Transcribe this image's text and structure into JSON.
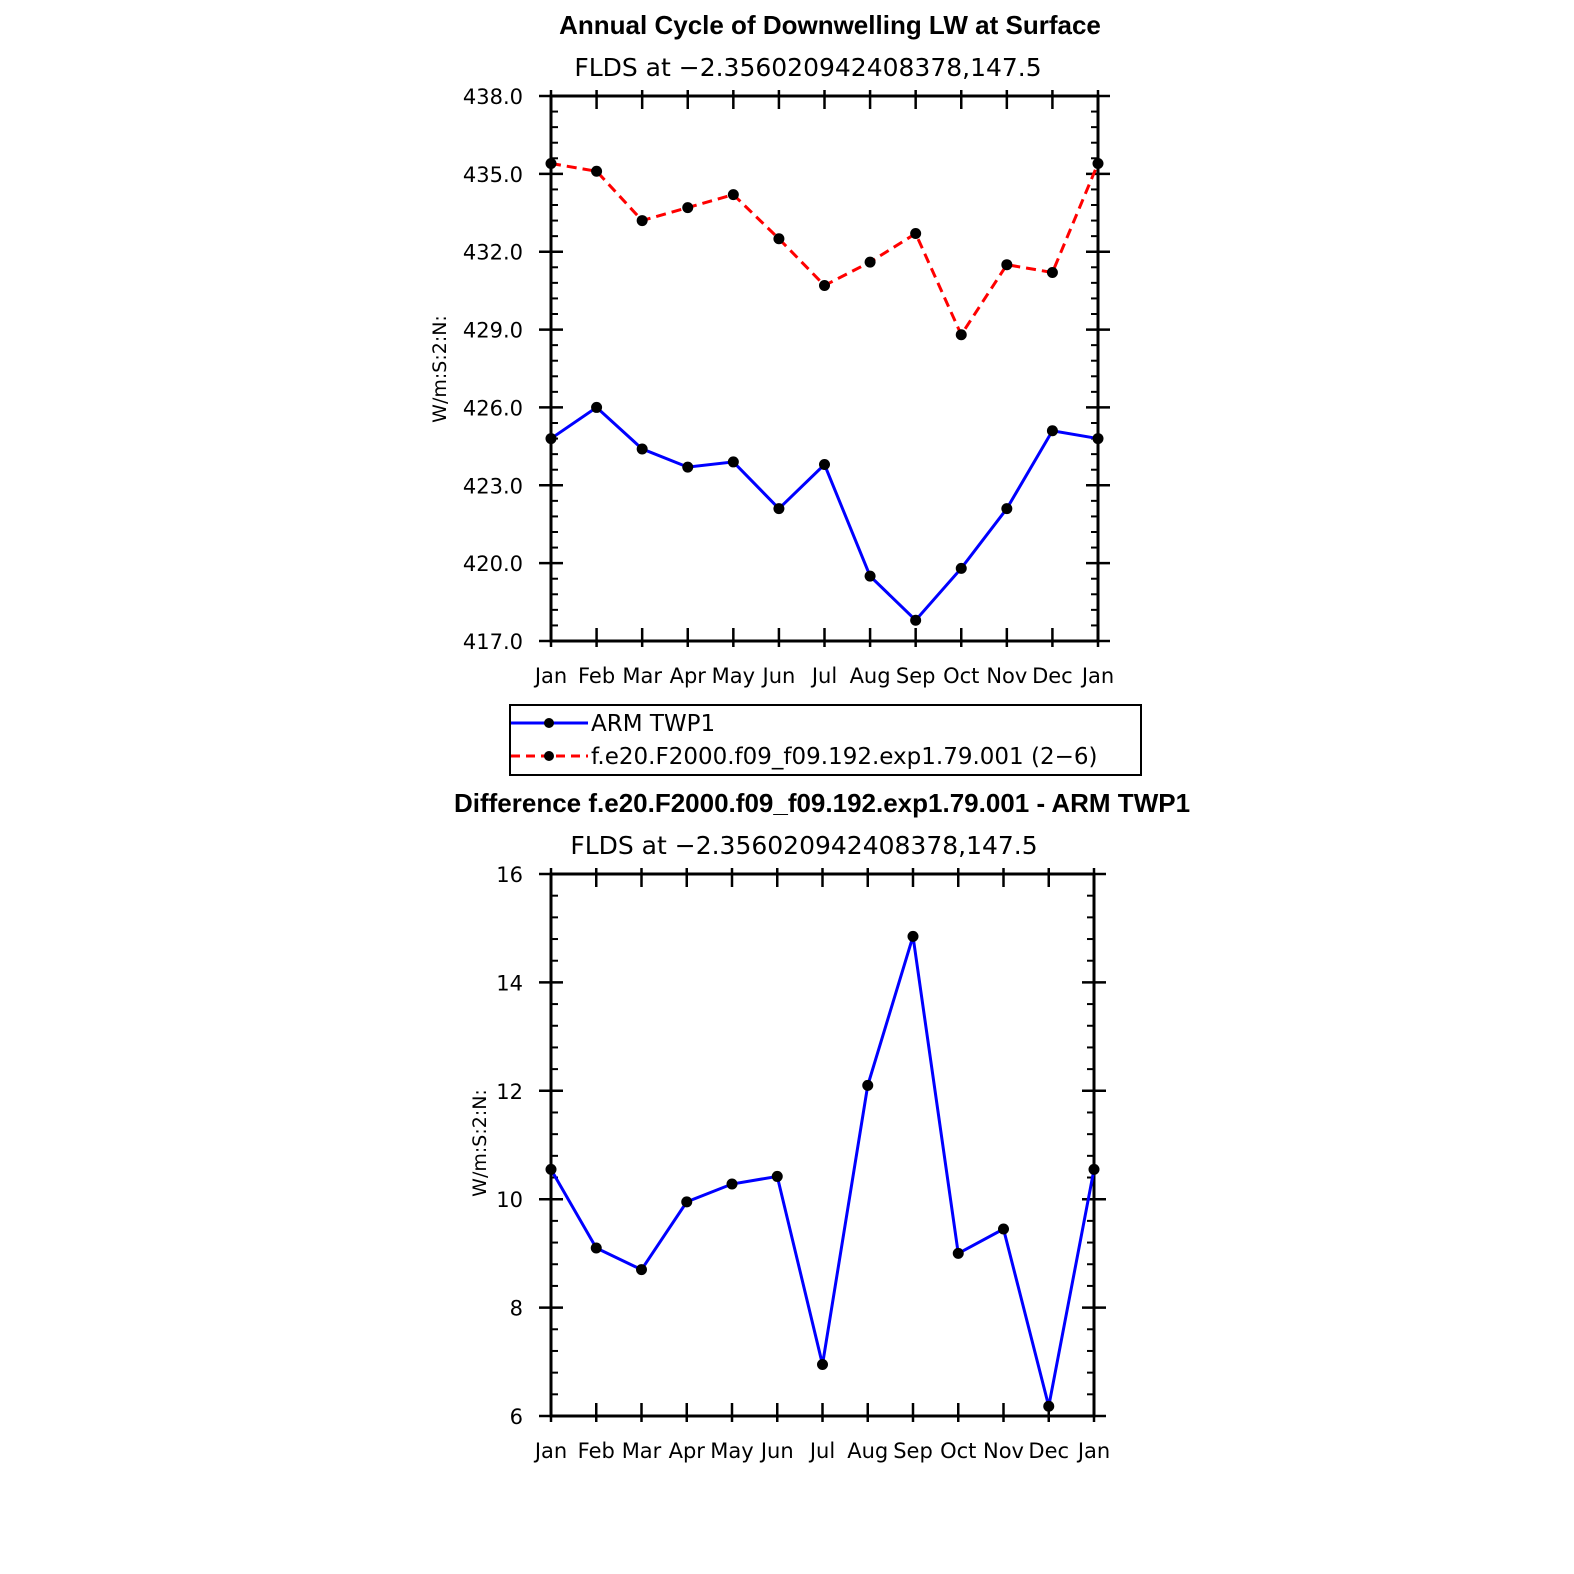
{
  "chart_data": [
    {
      "type": "line",
      "title": "Annual Cycle of Downwelling LW at Surface",
      "subtitle": "FLDS at −2.356020942408378,147.5",
      "ylabel": "W/m:S:2:N:",
      "ylim": [
        417.0,
        438.0
      ],
      "yticks": [
        "417.0",
        "420.0",
        "423.0",
        "426.0",
        "429.0",
        "432.0",
        "435.0",
        "438.0"
      ],
      "categories": [
        "Jan",
        "Feb",
        "Mar",
        "Apr",
        "May",
        "Jun",
        "Jul",
        "Aug",
        "Sep",
        "Oct",
        "Nov",
        "Dec",
        "Jan"
      ],
      "series": [
        {
          "name": "ARM  TWP1",
          "color": "#0000ff",
          "dash": "solid",
          "values": [
            424.8,
            426.0,
            424.4,
            423.7,
            423.9,
            422.1,
            423.8,
            419.5,
            417.8,
            419.8,
            422.1,
            425.1,
            424.8
          ]
        },
        {
          "name": "f.e20.F2000.f09_f09.192.exp1.79.001 (2−6)",
          "color": "#ff0000",
          "dash": "dashed",
          "values": [
            435.4,
            435.1,
            433.2,
            433.7,
            434.2,
            432.5,
            430.7,
            431.6,
            432.7,
            428.8,
            431.5,
            431.2,
            435.4
          ]
        }
      ],
      "legend": "below"
    },
    {
      "type": "line",
      "title": "Difference f.e20.F2000.f09_f09.192.exp1.79.001 - ARM TWP1",
      "subtitle": "FLDS at −2.356020942408378,147.5",
      "ylabel": "W/m:S:2:N:",
      "ylim": [
        6,
        16
      ],
      "yticks": [
        "6",
        "8",
        "10",
        "12",
        "14",
        "16"
      ],
      "categories": [
        "Jan",
        "Feb",
        "Mar",
        "Apr",
        "May",
        "Jun",
        "Jul",
        "Aug",
        "Sep",
        "Oct",
        "Nov",
        "Dec",
        "Jan"
      ],
      "series": [
        {
          "color": "#0000ff",
          "dash": "solid",
          "values": [
            10.55,
            9.1,
            8.7,
            9.95,
            10.28,
            10.42,
            6.95,
            12.1,
            14.85,
            9.0,
            9.45,
            6.18,
            10.55
          ]
        }
      ]
    }
  ]
}
